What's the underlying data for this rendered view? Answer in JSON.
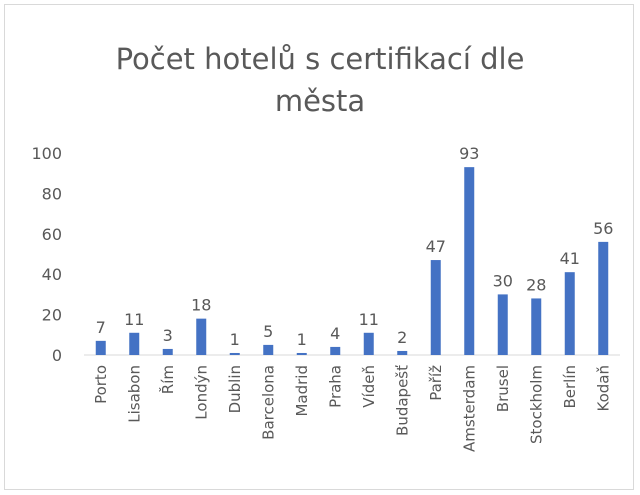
{
  "chart_data": {
    "type": "bar",
    "title": "Počet hotelů s certifikací dle města",
    "categories": [
      "Porto",
      "Lisabon",
      "Řím",
      "Londýn",
      "Dublin",
      "Barcelona",
      "Madrid",
      "Praha",
      "Vídeň",
      "Budapešť",
      "Paříž",
      "Amsterdam",
      "Brusel",
      "Stockholm",
      "Berlín",
      "Kodaň"
    ],
    "values": [
      7,
      11,
      3,
      18,
      1,
      5,
      1,
      4,
      11,
      2,
      47,
      93,
      30,
      28,
      41,
      56
    ],
    "color": "#4472c4",
    "ylim": [
      0,
      100
    ],
    "yticks": [
      0,
      20,
      40,
      60,
      80,
      100
    ],
    "grid": false
  }
}
